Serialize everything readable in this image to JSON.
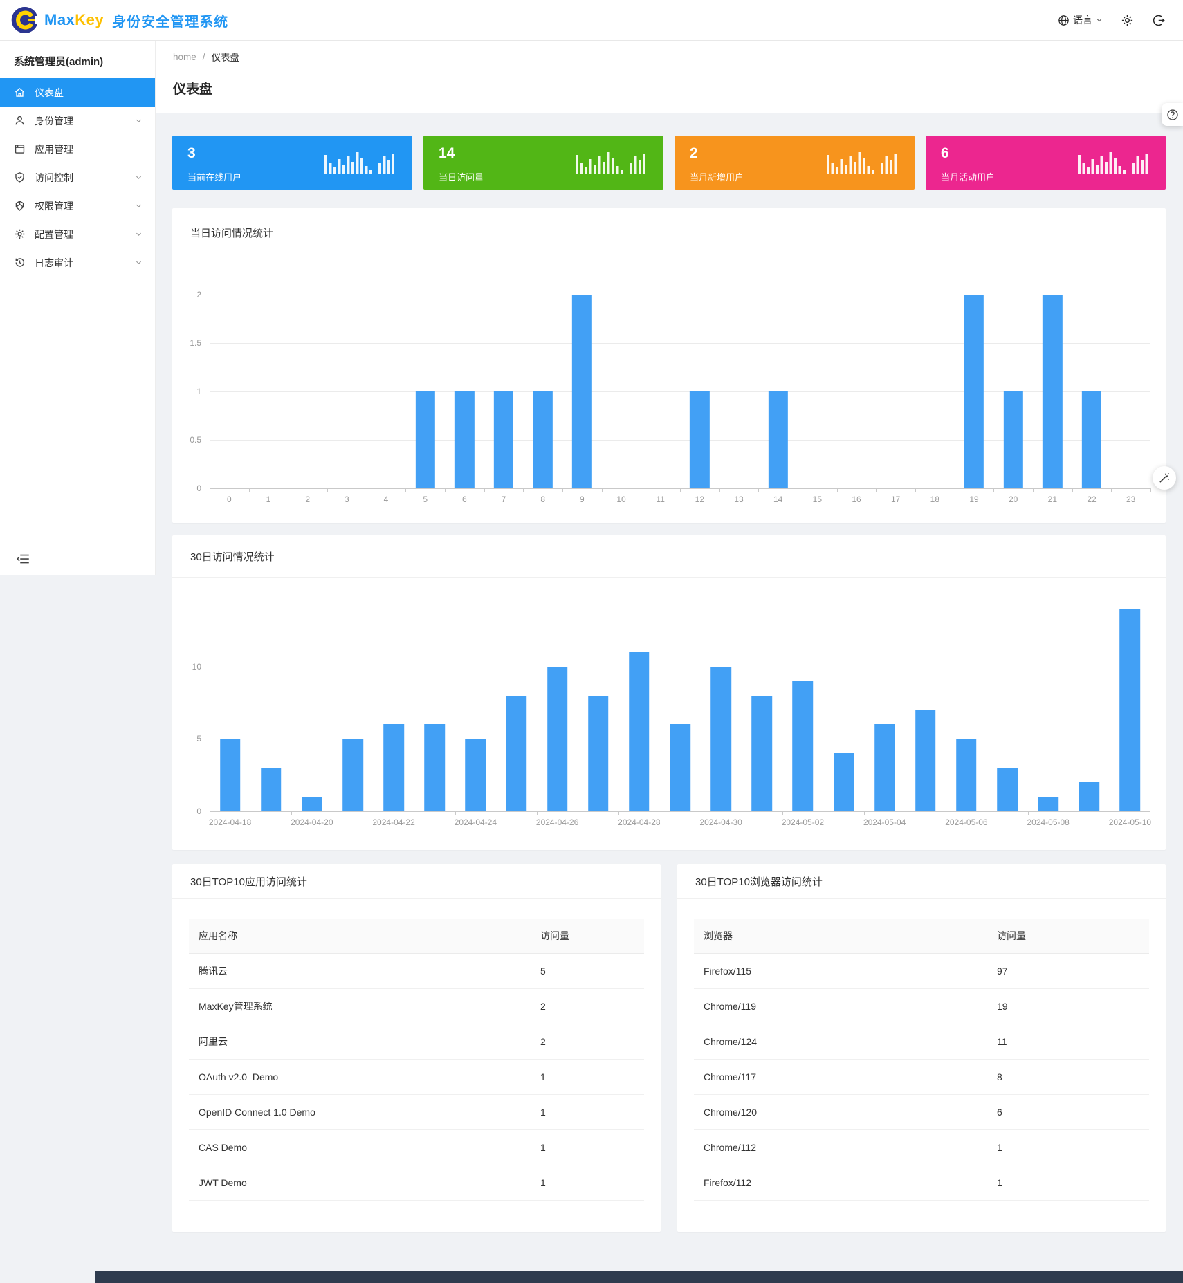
{
  "header": {
    "brand": {
      "max": "Max",
      "key": "Key",
      "product": "身份安全管理系统",
      "logo_icon": "maxkey-logo"
    },
    "language": {
      "label": "语言",
      "icon": "globe",
      "caret_icon": "chevron-down"
    },
    "settings_icon": "gear",
    "logout_icon": "logout"
  },
  "sidebar": {
    "user_label": "系统管理员(admin)",
    "collapse_icon": "menu-fold",
    "items": [
      {
        "label": "仪表盘",
        "icon": "home",
        "active": true,
        "expandable": false
      },
      {
        "label": "身份管理",
        "icon": "user",
        "active": false,
        "expandable": true
      },
      {
        "label": "应用管理",
        "icon": "app-window",
        "active": false,
        "expandable": false
      },
      {
        "label": "访问控制",
        "icon": "shield-check",
        "active": false,
        "expandable": true
      },
      {
        "label": "权限管理",
        "icon": "gem",
        "active": false,
        "expandable": true
      },
      {
        "label": "配置管理",
        "icon": "gear",
        "active": false,
        "expandable": true
      },
      {
        "label": "日志审计",
        "icon": "history-clock",
        "active": false,
        "expandable": true
      }
    ]
  },
  "breadcrumb": {
    "home": "home",
    "separator": "/",
    "current": "仪表盘"
  },
  "page_title": "仪表盘",
  "stat_cards": [
    {
      "value": "3",
      "label": "当前在线用户",
      "color": "#2196f3",
      "icon": "bar-sparkline"
    },
    {
      "value": "14",
      "label": "当日访问量",
      "color": "#52b616",
      "icon": "bar-sparkline"
    },
    {
      "value": "2",
      "label": "当月新增用户",
      "color": "#f7941d",
      "icon": "bar-sparkline"
    },
    {
      "value": "6",
      "label": "当月活动用户",
      "color": "#ec268f",
      "icon": "bar-sparkline"
    }
  ],
  "chart_data": [
    {
      "type": "bar",
      "title": "当日访问情况统计",
      "categories": [
        "0",
        "1",
        "2",
        "3",
        "4",
        "5",
        "6",
        "7",
        "8",
        "9",
        "10",
        "11",
        "12",
        "13",
        "14",
        "15",
        "16",
        "17",
        "18",
        "19",
        "20",
        "21",
        "22",
        "23"
      ],
      "values": [
        0,
        0,
        0,
        0,
        0,
        1,
        1,
        1,
        1,
        2,
        0,
        0,
        1,
        0,
        1,
        0,
        0,
        0,
        0,
        2,
        1,
        2,
        1,
        0
      ],
      "xlabel": "",
      "ylabel": "",
      "ylim": [
        0,
        2
      ],
      "yticks": [
        0,
        0.5,
        1,
        1.5,
        2
      ],
      "label_every": 1,
      "grid": true,
      "legend": false,
      "bar_color": "#42a0f5"
    },
    {
      "type": "bar",
      "title": "30日访问情况统计",
      "categories": [
        "2024-04-18",
        "2024-04-19",
        "2024-04-20",
        "2024-04-21",
        "2024-04-22",
        "2024-04-23",
        "2024-04-24",
        "2024-04-25",
        "2024-04-26",
        "2024-04-27",
        "2024-04-28",
        "2024-04-29",
        "2024-04-30",
        "2024-05-01",
        "2024-05-02",
        "2024-05-03",
        "2024-05-04",
        "2024-05-05",
        "2024-05-06",
        "2024-05-07",
        "2024-05-08",
        "2024-05-09",
        "2024-05-10"
      ],
      "values": [
        5,
        3,
        1,
        5,
        6,
        6,
        5,
        8,
        10,
        8,
        11,
        6,
        10,
        8,
        9,
        4,
        6,
        7,
        5,
        3,
        1,
        2,
        14
      ],
      "xlabel": "",
      "ylabel": "",
      "ylim": [
        0,
        15
      ],
      "yticks": [
        0,
        5,
        10
      ],
      "label_every": 2,
      "grid": true,
      "legend": false,
      "bar_color": "#42a0f5"
    }
  ],
  "tables": [
    {
      "title": "30日TOP10应用访问统计",
      "columns": [
        "应用名称",
        "访问量"
      ],
      "rows": [
        [
          "腾讯云",
          "5"
        ],
        [
          "MaxKey管理系统",
          "2"
        ],
        [
          "阿里云",
          "2"
        ],
        [
          "OAuth v2.0_Demo",
          "1"
        ],
        [
          "OpenID Connect 1.0 Demo",
          "1"
        ],
        [
          "CAS Demo",
          "1"
        ],
        [
          "JWT Demo",
          "1"
        ]
      ]
    },
    {
      "title": "30日TOP10浏览器访问统计",
      "columns": [
        "浏览器",
        "访问量"
      ],
      "rows": [
        [
          "Firefox/115",
          "97"
        ],
        [
          "Chrome/119",
          "19"
        ],
        [
          "Chrome/124",
          "11"
        ],
        [
          "Chrome/117",
          "8"
        ],
        [
          "Chrome/120",
          "6"
        ],
        [
          "Chrome/112",
          "1"
        ],
        [
          "Firefox/112",
          "1"
        ]
      ]
    }
  ],
  "floating": {
    "help_icon": "question-circle",
    "magic_icon": "magic-wand"
  }
}
